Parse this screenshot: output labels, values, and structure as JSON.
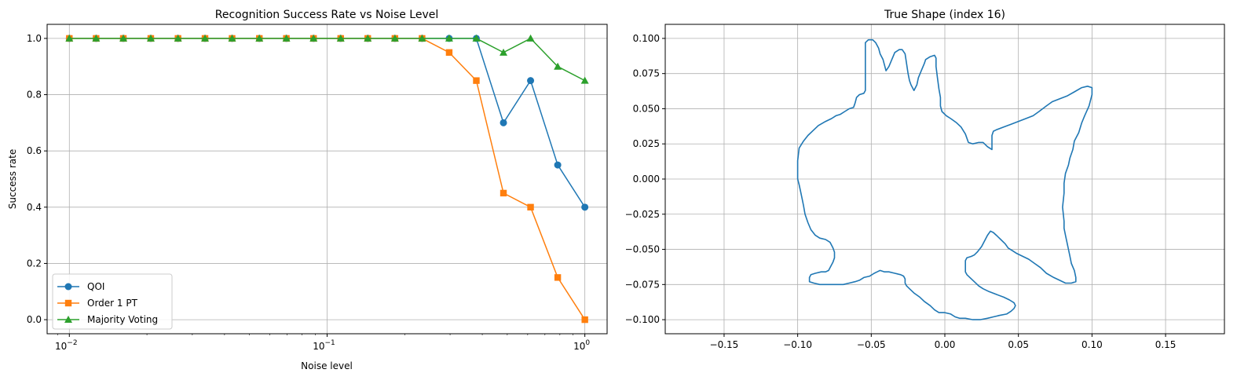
{
  "chart_data": [
    {
      "type": "line",
      "title": "Recognition Success Rate vs Noise Level",
      "xlabel": "Noise level",
      "ylabel": "Success rate",
      "xscale": "log",
      "xlim": [
        0.0082,
        1.22
      ],
      "ylim": [
        -0.05,
        1.05
      ],
      "x_ticks": [
        {
          "value": 0.01,
          "base": "10",
          "exp": "−2"
        },
        {
          "value": 0.1,
          "base": "10",
          "exp": "−1"
        },
        {
          "value": 1,
          "base": "10",
          "exp": "0"
        }
      ],
      "y_ticks": [
        "0.0",
        "0.2",
        "0.4",
        "0.6",
        "0.8",
        "1.0"
      ],
      "grid": true,
      "legend": "lower-left",
      "x": [
        0.01,
        0.0127,
        0.0162,
        0.0207,
        0.0264,
        0.0336,
        0.0428,
        0.0546,
        0.0695,
        0.0886,
        0.1129,
        0.1438,
        0.1833,
        0.2336,
        0.2976,
        0.3793,
        0.4833,
        0.6158,
        0.7848,
        1.0
      ],
      "series": [
        {
          "name": "QOI",
          "color": "#1f77b4",
          "marker": "circle",
          "values": [
            1,
            1,
            1,
            1,
            1,
            1,
            1,
            1,
            1,
            1,
            1,
            1,
            1,
            1,
            1,
            1,
            0.7,
            0.85,
            0.55,
            0.4
          ]
        },
        {
          "name": "Order 1 PT",
          "color": "#ff7f0e",
          "marker": "square",
          "values": [
            1,
            1,
            1,
            1,
            1,
            1,
            1,
            1,
            1,
            1,
            1,
            1,
            1,
            1,
            0.95,
            0.85,
            0.45,
            0.4,
            0.15,
            0.0
          ]
        },
        {
          "name": "Majority Voting",
          "color": "#2ca02c",
          "marker": "triangle",
          "values": [
            1,
            1,
            1,
            1,
            1,
            1,
            1,
            1,
            1,
            1,
            1,
            1,
            1,
            1,
            1,
            1,
            0.95,
            1.0,
            0.9,
            0.85
          ]
        }
      ]
    },
    {
      "type": "line",
      "title": "True Shape (index 16)",
      "xlim": [
        -0.19,
        0.19
      ],
      "ylim": [
        -0.11,
        0.11
      ],
      "x_ticks": [
        "−0.15",
        "−0.10",
        "−0.05",
        "0.00",
        "0.05",
        "0.10",
        "0.15"
      ],
      "x_tick_values": [
        -0.15,
        -0.1,
        -0.05,
        0.0,
        0.05,
        0.1,
        0.15
      ],
      "y_ticks": [
        "−0.100",
        "−0.075",
        "−0.050",
        "−0.025",
        "0.000",
        "0.025",
        "0.050",
        "0.075",
        "0.100"
      ],
      "y_tick_values": [
        -0.1,
        -0.075,
        -0.05,
        -0.025,
        0.0,
        0.025,
        0.05,
        0.075,
        0.1
      ],
      "grid": true,
      "series": [
        {
          "color": "#1f77b4",
          "points": [
            [
              -0.1,
              0.0
            ],
            [
              -0.1,
              0.013
            ],
            [
              -0.099,
              0.022
            ],
            [
              -0.096,
              0.027
            ],
            [
              -0.093,
              0.031
            ],
            [
              -0.09,
              0.034
            ],
            [
              -0.086,
              0.038
            ],
            [
              -0.081,
              0.041
            ],
            [
              -0.077,
              0.043
            ],
            [
              -0.074,
              0.045
            ],
            [
              -0.071,
              0.046
            ],
            [
              -0.068,
              0.048
            ],
            [
              -0.065,
              0.05
            ],
            [
              -0.062,
              0.051
            ],
            [
              -0.061,
              0.054
            ],
            [
              -0.06,
              0.058
            ],
            [
              -0.058,
              0.06
            ],
            [
              -0.055,
              0.061
            ],
            [
              -0.054,
              0.063
            ],
            [
              -0.054,
              0.08
            ],
            [
              -0.054,
              0.097
            ],
            [
              -0.052,
              0.099
            ],
            [
              -0.049,
              0.099
            ],
            [
              -0.047,
              0.097
            ],
            [
              -0.045,
              0.093
            ],
            [
              -0.044,
              0.089
            ],
            [
              -0.042,
              0.085
            ],
            [
              -0.041,
              0.081
            ],
            [
              -0.04,
              0.077
            ],
            [
              -0.038,
              0.08
            ],
            [
              -0.036,
              0.085
            ],
            [
              -0.034,
              0.09
            ],
            [
              -0.031,
              0.092
            ],
            [
              -0.029,
              0.092
            ],
            [
              -0.027,
              0.089
            ],
            [
              -0.026,
              0.082
            ],
            [
              -0.025,
              0.075
            ],
            [
              -0.024,
              0.07
            ],
            [
              -0.023,
              0.067
            ],
            [
              -0.021,
              0.063
            ],
            [
              -0.019,
              0.067
            ],
            [
              -0.018,
              0.072
            ],
            [
              -0.016,
              0.077
            ],
            [
              -0.014,
              0.082
            ],
            [
              -0.013,
              0.085
            ],
            [
              -0.01,
              0.087
            ],
            [
              -0.007,
              0.088
            ],
            [
              -0.006,
              0.086
            ],
            [
              -0.006,
              0.08
            ],
            [
              -0.005,
              0.072
            ],
            [
              -0.004,
              0.064
            ],
            [
              -0.003,
              0.058
            ],
            [
              -0.003,
              0.052
            ],
            [
              -0.002,
              0.048
            ],
            [
              0.001,
              0.045
            ],
            [
              0.004,
              0.043
            ],
            [
              0.008,
              0.04
            ],
            [
              0.011,
              0.037
            ],
            [
              0.014,
              0.032
            ],
            [
              0.016,
              0.026
            ],
            [
              0.019,
              0.025
            ],
            [
              0.023,
              0.026
            ],
            [
              0.026,
              0.026
            ],
            [
              0.029,
              0.023
            ],
            [
              0.032,
              0.021
            ],
            [
              0.032,
              0.025
            ],
            [
              0.032,
              0.031
            ],
            [
              0.033,
              0.034
            ],
            [
              0.035,
              0.035
            ],
            [
              0.04,
              0.037
            ],
            [
              0.045,
              0.039
            ],
            [
              0.05,
              0.041
            ],
            [
              0.055,
              0.043
            ],
            [
              0.06,
              0.045
            ],
            [
              0.064,
              0.048
            ],
            [
              0.069,
              0.052
            ],
            [
              0.073,
              0.055
            ],
            [
              0.078,
              0.057
            ],
            [
              0.083,
              0.059
            ],
            [
              0.088,
              0.062
            ],
            [
              0.093,
              0.065
            ],
            [
              0.097,
              0.066
            ],
            [
              0.1,
              0.065
            ],
            [
              0.1,
              0.06
            ],
            [
              0.098,
              0.052
            ],
            [
              0.095,
              0.045
            ],
            [
              0.093,
              0.04
            ],
            [
              0.091,
              0.033
            ],
            [
              0.088,
              0.027
            ],
            [
              0.087,
              0.021
            ],
            [
              0.085,
              0.015
            ],
            [
              0.084,
              0.01
            ],
            [
              0.082,
              0.004
            ],
            [
              0.081,
              -0.003
            ],
            [
              0.081,
              -0.01
            ],
            [
              0.08,
              -0.02
            ],
            [
              0.081,
              -0.03
            ],
            [
              0.081,
              -0.035
            ],
            [
              0.082,
              -0.04
            ],
            [
              0.083,
              -0.045
            ],
            [
              0.084,
              -0.05
            ],
            [
              0.085,
              -0.055
            ],
            [
              0.086,
              -0.06
            ],
            [
              0.088,
              -0.065
            ],
            [
              0.089,
              -0.07
            ],
            [
              0.089,
              -0.073
            ],
            [
              0.086,
              -0.074
            ],
            [
              0.082,
              -0.074
            ],
            [
              0.078,
              -0.072
            ],
            [
              0.074,
              -0.07
            ],
            [
              0.069,
              -0.067
            ],
            [
              0.065,
              -0.063
            ],
            [
              0.061,
              -0.06
            ],
            [
              0.057,
              -0.057
            ],
            [
              0.053,
              -0.055
            ],
            [
              0.049,
              -0.053
            ],
            [
              0.046,
              -0.051
            ],
            [
              0.043,
              -0.049
            ],
            [
              0.041,
              -0.046
            ],
            [
              0.038,
              -0.043
            ],
            [
              0.035,
              -0.04
            ],
            [
              0.033,
              -0.038
            ],
            [
              0.031,
              -0.037
            ],
            [
              0.029,
              -0.04
            ],
            [
              0.027,
              -0.044
            ],
            [
              0.025,
              -0.048
            ],
            [
              0.022,
              -0.052
            ],
            [
              0.02,
              -0.054
            ],
            [
              0.018,
              -0.055
            ],
            [
              0.015,
              -0.056
            ],
            [
              0.014,
              -0.058
            ],
            [
              0.014,
              -0.062
            ],
            [
              0.014,
              -0.066
            ],
            [
              0.015,
              -0.068
            ],
            [
              0.017,
              -0.07
            ],
            [
              0.02,
              -0.073
            ],
            [
              0.023,
              -0.076
            ],
            [
              0.026,
              -0.078
            ],
            [
              0.03,
              -0.08
            ],
            [
              0.035,
              -0.082
            ],
            [
              0.04,
              -0.084
            ],
            [
              0.044,
              -0.086
            ],
            [
              0.047,
              -0.088
            ],
            [
              0.048,
              -0.09
            ],
            [
              0.047,
              -0.092
            ],
            [
              0.045,
              -0.094
            ],
            [
              0.042,
              -0.096
            ],
            [
              0.037,
              -0.097
            ],
            [
              0.033,
              -0.098
            ],
            [
              0.029,
              -0.099
            ],
            [
              0.024,
              -0.1
            ],
            [
              0.019,
              -0.1
            ],
            [
              0.014,
              -0.099
            ],
            [
              0.01,
              -0.099
            ],
            [
              0.007,
              -0.098
            ],
            [
              0.004,
              -0.096
            ],
            [
              0.0,
              -0.095
            ],
            [
              -0.004,
              -0.095
            ],
            [
              -0.007,
              -0.093
            ],
            [
              -0.01,
              -0.09
            ],
            [
              -0.014,
              -0.087
            ],
            [
              -0.017,
              -0.084
            ],
            [
              -0.021,
              -0.081
            ],
            [
              -0.024,
              -0.078
            ],
            [
              -0.026,
              -0.076
            ],
            [
              -0.027,
              -0.074
            ],
            [
              -0.027,
              -0.071
            ],
            [
              -0.028,
              -0.069
            ],
            [
              -0.03,
              -0.068
            ],
            [
              -0.034,
              -0.067
            ],
            [
              -0.038,
              -0.066
            ],
            [
              -0.041,
              -0.066
            ],
            [
              -0.044,
              -0.065
            ],
            [
              -0.046,
              -0.066
            ],
            [
              -0.048,
              -0.067
            ],
            [
              -0.051,
              -0.069
            ],
            [
              -0.055,
              -0.07
            ],
            [
              -0.058,
              -0.072
            ],
            [
              -0.061,
              -0.073
            ],
            [
              -0.065,
              -0.074
            ],
            [
              -0.069,
              -0.075
            ],
            [
              -0.073,
              -0.075
            ],
            [
              -0.077,
              -0.075
            ],
            [
              -0.081,
              -0.075
            ],
            [
              -0.085,
              -0.075
            ],
            [
              -0.089,
              -0.074
            ],
            [
              -0.092,
              -0.073
            ],
            [
              -0.092,
              -0.07
            ],
            [
              -0.091,
              -0.068
            ],
            [
              -0.088,
              -0.067
            ],
            [
              -0.084,
              -0.066
            ],
            [
              -0.081,
              -0.066
            ],
            [
              -0.079,
              -0.065
            ],
            [
              -0.078,
              -0.063
            ],
            [
              -0.076,
              -0.059
            ],
            [
              -0.075,
              -0.056
            ],
            [
              -0.075,
              -0.052
            ],
            [
              -0.076,
              -0.049
            ],
            [
              -0.078,
              -0.045
            ],
            [
              -0.081,
              -0.043
            ],
            [
              -0.085,
              -0.042
            ],
            [
              -0.088,
              -0.04
            ],
            [
              -0.091,
              -0.036
            ],
            [
              -0.093,
              -0.031
            ],
            [
              -0.095,
              -0.025
            ],
            [
              -0.096,
              -0.019
            ],
            [
              -0.097,
              -0.014
            ],
            [
              -0.098,
              -0.009
            ],
            [
              -0.099,
              -0.004
            ],
            [
              -0.1,
              0.0
            ]
          ]
        }
      ]
    }
  ]
}
